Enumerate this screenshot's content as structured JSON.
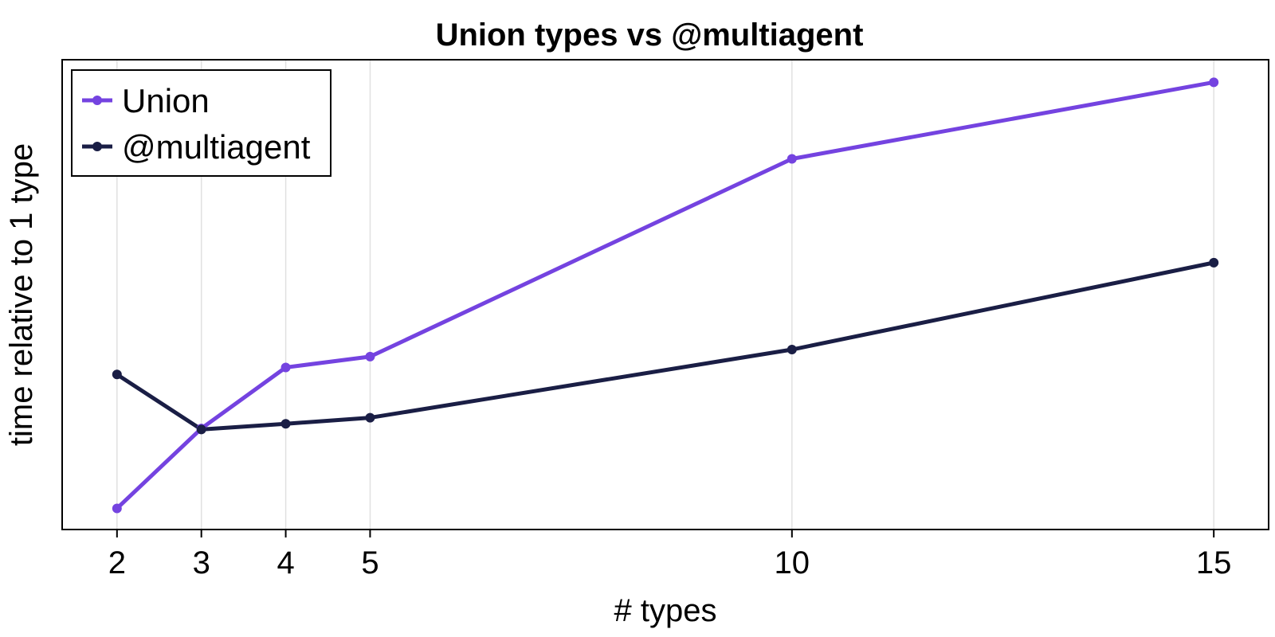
{
  "chart_data": {
    "type": "line",
    "title": "Union types vs @multiagent",
    "xlabel": "# types",
    "ylabel": "time relative to 1 type",
    "x": [
      2,
      3,
      4,
      5,
      10,
      15
    ],
    "xticks": [
      "2",
      "3",
      "4",
      "5",
      "10",
      "15"
    ],
    "xlim": [
      1.35,
      15.65
    ],
    "ylim": [
      0.0,
      1.0
    ],
    "y_tick_labels_shown": false,
    "grid": "vertical",
    "legend_position": "top-left",
    "series": [
      {
        "name": "Union",
        "color": "#7443e0",
        "values": [
          0.045,
          0.215,
          0.345,
          0.368,
          0.789,
          0.952
        ]
      },
      {
        "name": "@multiagent",
        "color": "#1a1e45",
        "values": [
          0.33,
          0.213,
          0.225,
          0.238,
          0.383,
          0.568
        ]
      }
    ]
  }
}
